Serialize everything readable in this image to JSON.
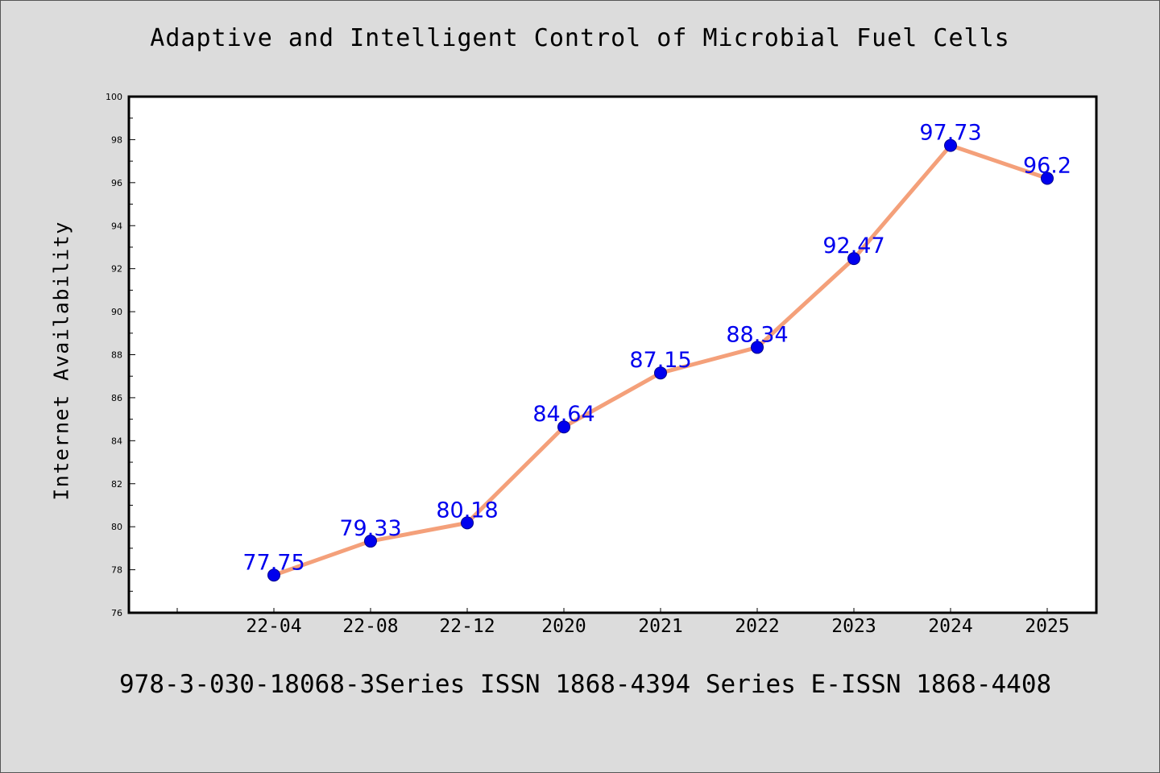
{
  "chart_data": {
    "type": "line",
    "title": "Adaptive and Intelligent Control of Microbial Fuel Cells",
    "xlabel": "",
    "ylabel": "Internet Availability",
    "categories": [
      "22-04",
      "22-08",
      "22-12",
      "2020",
      "2021",
      "2022",
      "2023",
      "2024",
      "2025"
    ],
    "values": [
      77.75,
      79.33,
      80.18,
      84.64,
      87.15,
      88.34,
      92.47,
      97.73,
      96.2
    ],
    "value_labels": [
      "77.75",
      "79.33",
      "80.18",
      "84.64",
      "87.15",
      "88.34",
      "92.47",
      "97.73",
      "96.2"
    ],
    "ylim": [
      76,
      100
    ],
    "yticks": [
      76,
      78,
      80,
      82,
      84,
      86,
      88,
      90,
      92,
      94,
      96,
      98,
      100
    ],
    "grid": false,
    "legend": "none",
    "line_color": "#f4a07a",
    "marker_color": "#0000ee",
    "label_color": "#0000ee"
  },
  "footer_text": "978-3-030-18068-3Series ISSN 1868-4394 Series E-ISSN 1868-4408"
}
